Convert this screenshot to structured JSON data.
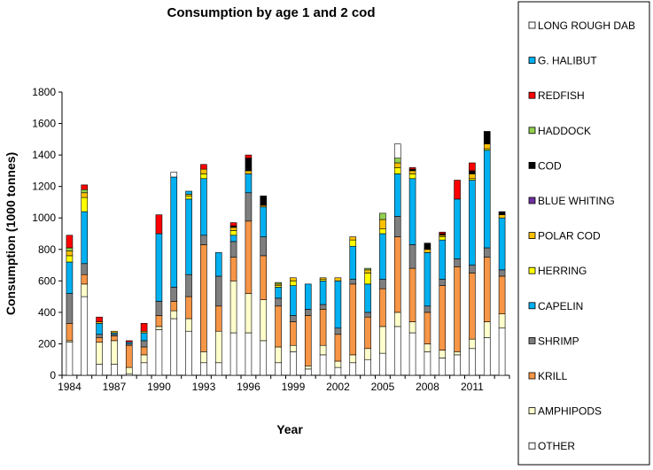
{
  "chart_data": {
    "type": "bar",
    "stacked": true,
    "title": "Consumption by age 1 and 2 cod",
    "xlabel": "Year",
    "ylabel": "Consumption (1000 tonnes)",
    "ylim": [
      0,
      1800
    ],
    "yticks": [
      0,
      200,
      400,
      600,
      800,
      1000,
      1200,
      1400,
      1600,
      1800
    ],
    "grid": false,
    "legend_position": "right",
    "categories": [
      "1984",
      "1985",
      "1986",
      "1987",
      "1988",
      "1989",
      "1990",
      "1991",
      "1992",
      "1993",
      "1994",
      "1995",
      "1996",
      "1997",
      "1998",
      "1999",
      "2000",
      "2001",
      "2002",
      "2003",
      "2004",
      "2005",
      "2006",
      "2007",
      "2008",
      "2009",
      "2010",
      "2011",
      "2012",
      "2013"
    ],
    "xtick_labels": [
      "1984",
      "",
      "",
      "1987",
      "",
      "",
      "1990",
      "",
      "",
      "1993",
      "",
      "",
      "1996",
      "",
      "",
      "1999",
      "",
      "",
      "2002",
      "",
      "",
      "2005",
      "",
      "",
      "2008",
      "",
      "",
      "2011",
      "",
      ""
    ],
    "series": [
      {
        "name": "OTHER",
        "color": "#ffffff",
        "values": [
          210,
          500,
          70,
          70,
          10,
          80,
          290,
          360,
          280,
          80,
          80,
          270,
          270,
          220,
          80,
          150,
          40,
          130,
          50,
          80,
          100,
          140,
          310,
          270,
          150,
          110,
          130,
          170,
          240,
          300
        ]
      },
      {
        "name": "AMPHIPODS",
        "color": "#ffffcc",
        "values": [
          10,
          80,
          140,
          150,
          40,
          50,
          20,
          50,
          80,
          70,
          200,
          330,
          250,
          260,
          100,
          40,
          20,
          60,
          40,
          50,
          70,
          170,
          90,
          70,
          50,
          50,
          20,
          60,
          100,
          90
        ]
      },
      {
        "name": "KRILL",
        "color": "#f79646",
        "values": [
          110,
          60,
          30,
          30,
          140,
          50,
          70,
          60,
          140,
          680,
          160,
          150,
          460,
          280,
          260,
          150,
          320,
          230,
          170,
          450,
          200,
          240,
          480,
          340,
          200,
          410,
          540,
          420,
          410,
          240
        ]
      },
      {
        "name": "SHRIMP",
        "color": "#7f7f7f",
        "values": [
          190,
          70,
          20,
          10,
          10,
          40,
          90,
          90,
          140,
          60,
          190,
          100,
          180,
          120,
          50,
          40,
          40,
          30,
          40,
          30,
          30,
          60,
          130,
          150,
          40,
          40,
          50,
          50,
          60,
          40
        ]
      },
      {
        "name": "CAPELIN",
        "color": "#00b0f0",
        "values": [
          200,
          330,
          70,
          10,
          10,
          50,
          430,
          700,
          480,
          360,
          150,
          40,
          120,
          190,
          70,
          190,
          160,
          150,
          300,
          210,
          180,
          290,
          270,
          420,
          340,
          250,
          380,
          540,
          620,
          330
        ]
      },
      {
        "name": "HERRING",
        "color": "#ffff00",
        "values": [
          40,
          90,
          0,
          0,
          0,
          0,
          0,
          0,
          20,
          30,
          0,
          30,
          0,
          0,
          10,
          30,
          0,
          10,
          0,
          40,
          70,
          30,
          40,
          30,
          0,
          20,
          0,
          10,
          10,
          0
        ]
      },
      {
        "name": "POLAR COD",
        "color": "#ffc000",
        "values": [
          30,
          30,
          10,
          10,
          0,
          10,
          0,
          0,
          10,
          30,
          0,
          20,
          20,
          10,
          10,
          20,
          0,
          10,
          20,
          20,
          20,
          60,
          30,
          20,
          20,
          10,
          0,
          30,
          30,
          20
        ]
      },
      {
        "name": "BLUE WHITING",
        "color": "#7030a0",
        "values": [
          0,
          0,
          0,
          0,
          0,
          0,
          0,
          0,
          0,
          0,
          0,
          0,
          0,
          0,
          0,
          0,
          0,
          0,
          0,
          0,
          0,
          0,
          0,
          0,
          0,
          0,
          0,
          0,
          0,
          0
        ]
      },
      {
        "name": "COD",
        "color": "#000000",
        "values": [
          0,
          0,
          0,
          0,
          0,
          0,
          0,
          0,
          0,
          0,
          0,
          10,
          80,
          60,
          0,
          0,
          0,
          0,
          0,
          0,
          0,
          0,
          0,
          10,
          40,
          10,
          0,
          20,
          80,
          20
        ]
      },
      {
        "name": "HADDOCK",
        "color": "#92d050",
        "values": [
          20,
          20,
          0,
          0,
          0,
          0,
          0,
          0,
          0,
          0,
          0,
          0,
          0,
          0,
          10,
          0,
          0,
          0,
          0,
          0,
          10,
          40,
          30,
          0,
          0,
          0,
          0,
          0,
          0,
          0
        ]
      },
      {
        "name": "REDFISH",
        "color": "#ff0000",
        "values": [
          80,
          30,
          30,
          0,
          10,
          50,
          120,
          0,
          0,
          30,
          0,
          20,
          20,
          0,
          0,
          0,
          0,
          0,
          0,
          0,
          0,
          0,
          0,
          10,
          0,
          10,
          120,
          50,
          0,
          0
        ]
      },
      {
        "name": "G. HALIBUT",
        "color": "#00b0f0",
        "values": [
          0,
          0,
          0,
          0,
          0,
          0,
          0,
          0,
          20,
          0,
          0,
          0,
          0,
          0,
          0,
          0,
          0,
          0,
          0,
          0,
          0,
          0,
          0,
          0,
          0,
          0,
          0,
          0,
          0,
          0
        ]
      },
      {
        "name": "LONG ROUGH DAB",
        "color": "#ffffff",
        "values": [
          0,
          0,
          0,
          0,
          0,
          0,
          0,
          30,
          0,
          0,
          0,
          0,
          0,
          0,
          0,
          0,
          0,
          0,
          0,
          0,
          0,
          0,
          90,
          0,
          0,
          0,
          0,
          0,
          0,
          0
        ]
      }
    ],
    "legend_order": [
      "LONG ROUGH DAB",
      "G. HALIBUT",
      "REDFISH",
      "HADDOCK",
      "COD",
      "BLUE WHITING",
      "POLAR COD",
      "HERRING",
      "CAPELIN",
      "SHRIMP",
      "KRILL",
      "AMPHIPODS",
      "OTHER"
    ]
  }
}
